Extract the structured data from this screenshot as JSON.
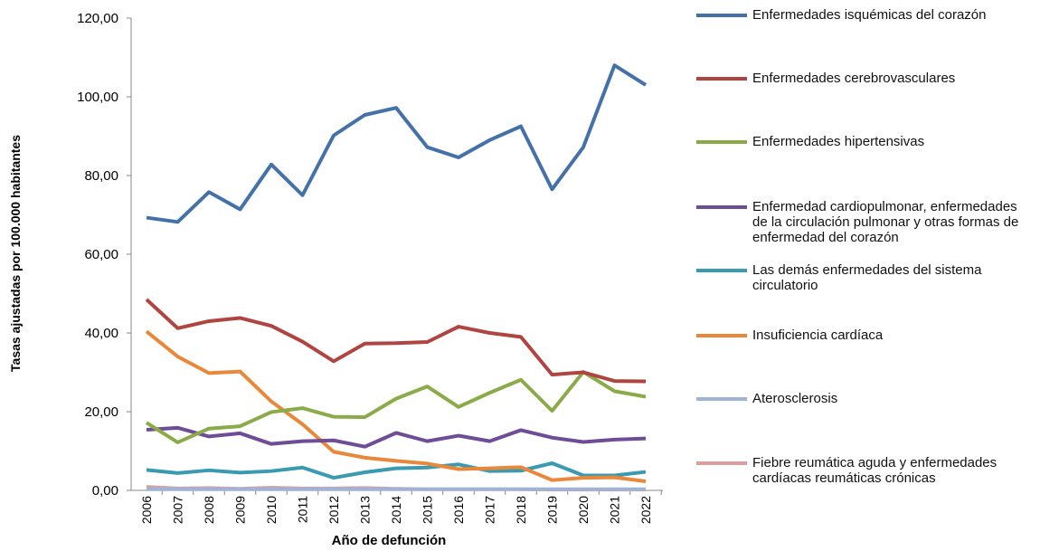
{
  "chart_data": {
    "type": "line",
    "x_label": "Año de defunción",
    "y_label": "Tasas ajustadas por 100.000 habitantes",
    "categories": [
      "2006",
      "2007",
      "2008",
      "2009",
      "2010",
      "2011",
      "2012",
      "2013",
      "2014",
      "2015",
      "2016",
      "2017",
      "2018",
      "2019",
      "2020",
      "2021",
      "2022"
    ],
    "ylim": [
      0,
      120
    ],
    "yticks": [
      {
        "value": 0,
        "label": "0,00"
      },
      {
        "value": 20,
        "label": "20,00"
      },
      {
        "value": 40,
        "label": "40,00"
      },
      {
        "value": 60,
        "label": "60,00"
      },
      {
        "value": 80,
        "label": "80,00"
      },
      {
        "value": 100,
        "label": "100,00"
      },
      {
        "value": 120,
        "label": "120,00"
      }
    ],
    "series": [
      {
        "name": "Enfermedades isquémicas del corazón",
        "color": "#4472a8",
        "values": [
          69.3,
          68.2,
          75.8,
          71.4,
          82.8,
          75.0,
          90.2,
          95.4,
          97.2,
          87.2,
          84.6,
          89.0,
          92.5,
          76.5,
          87.2,
          108.0,
          103.0
        ]
      },
      {
        "name": "Enfermedades cerebrovasculares",
        "color": "#b04440",
        "values": [
          48.5,
          41.2,
          43.0,
          43.8,
          41.8,
          37.8,
          32.8,
          37.3,
          37.4,
          37.7,
          41.6,
          40.0,
          39.0,
          29.4,
          30.0,
          27.8,
          27.7
        ]
      },
      {
        "name": "Enfermedades hipertensivas",
        "color": "#8bab48",
        "values": [
          17.2,
          12.2,
          15.7,
          16.3,
          19.9,
          20.9,
          18.7,
          18.6,
          23.3,
          26.4,
          21.2,
          24.8,
          28.1,
          20.2,
          30.1,
          25.2,
          23.8
        ]
      },
      {
        "name": "Enfermedad cardiopulmonar, enfermedades de la circulación pulmonar y otras formas de enfermedad del corazón",
        "color": "#6e4d96",
        "values": [
          15.4,
          15.9,
          13.7,
          14.5,
          11.8,
          12.5,
          12.7,
          11.1,
          14.6,
          12.5,
          13.9,
          12.5,
          15.3,
          13.4,
          12.3,
          12.9,
          13.2
        ]
      },
      {
        "name": "Las demás enfermedades del sistema circulatorio",
        "color": "#3a9bb0",
        "values": [
          5.2,
          4.4,
          5.1,
          4.5,
          4.9,
          5.8,
          3.2,
          4.6,
          5.6,
          5.8,
          6.6,
          4.9,
          5.0,
          6.9,
          3.8,
          3.8,
          4.7
        ]
      },
      {
        "name": "Insuficiencia cardíaca",
        "color": "#e9883a",
        "values": [
          40.4,
          34.0,
          29.8,
          30.2,
          22.6,
          16.8,
          9.8,
          8.3,
          7.5,
          6.8,
          5.4,
          5.6,
          5.9,
          2.6,
          3.2,
          3.3,
          2.3
        ]
      },
      {
        "name": "Aterosclerosis",
        "color": "#9fb3d6",
        "values": [
          0.3,
          0.3,
          0.3,
          0.3,
          0.3,
          0.3,
          0.3,
          0.3,
          0.3,
          0.3,
          0.3,
          0.3,
          0.3,
          0.3,
          0.3,
          0.3,
          0.3
        ]
      },
      {
        "name": "Fiebre reumática aguda y enfermedades cardíacas reumáticas crónicas",
        "color": "#d9a0a0",
        "values": [
          0.9,
          0.5,
          0.6,
          0.4,
          0.7,
          0.5,
          0.5,
          0.6,
          0.4,
          0.3,
          0.3,
          0.3,
          0.3,
          0.2,
          0.2,
          0.2,
          0.2
        ]
      }
    ]
  }
}
